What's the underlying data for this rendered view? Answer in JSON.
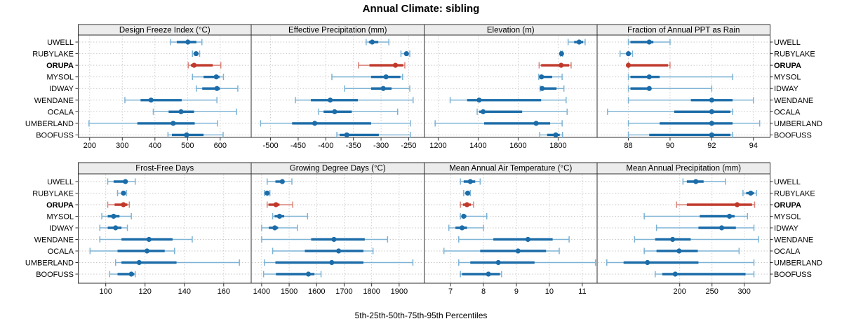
{
  "title": "Annual Climate: sibling",
  "footer": "5th-25th-50th-75th-95th Percentiles",
  "sites": [
    "UWELL",
    "RUBYLAKE",
    "ORUPA",
    "MYSOL",
    "IDWAY",
    "WENDANE",
    "OCALA",
    "UMBERLAND",
    "BOOFUSS"
  ],
  "highlighted_site": "ORUPA",
  "colors": {
    "blue_dark": "#1b6ca8",
    "blue_light": "#7db3d5",
    "red_dark": "#c0392b",
    "red_light": "#d98379",
    "grid": "#c8c8c8",
    "panel_border": "#2f2f2f",
    "strip_bg": "#ececec",
    "text": "#000000"
  },
  "chart_data": {
    "type": "dot-whisker-percentile-trellis",
    "percentiles_shown": [
      5,
      25,
      50,
      75,
      95
    ],
    "legend_note": "thin line = 5th-95th, thick line = 25th-75th, dot = median",
    "panels": [
      {
        "row": 0,
        "col": 0,
        "title": "Design Freeze Index (°C)",
        "ticks": [
          200,
          300,
          400,
          500,
          600
        ],
        "domain": [
          165,
          695
        ],
        "values": {
          "UWELL": [
            448,
            467,
            501,
            527,
            544
          ],
          "RUBYLAKE": [
            515,
            521,
            526,
            531,
            537
          ],
          "ORUPA": [
            502,
            510,
            520,
            577,
            602
          ],
          "MYSOL": [
            515,
            549,
            588,
            598,
            610
          ],
          "IDWAY": [
            527,
            545,
            590,
            599,
            654
          ],
          "WENDANE": [
            308,
            356,
            388,
            482,
            590
          ],
          "OCALA": [
            395,
            442,
            480,
            520,
            650
          ],
          "UMBERLAND": [
            198,
            346,
            456,
            522,
            592
          ],
          "BOOFUSS": [
            440,
            452,
            497,
            549,
            609
          ]
        }
      },
      {
        "row": 0,
        "col": 1,
        "title": "Effective Precipitation (mm)",
        "ticks": [
          -500,
          -450,
          -400,
          -350,
          -300,
          -250
        ],
        "domain": [
          -535,
          -222
        ],
        "values": {
          "UWELL": [
            -327,
            -322,
            -316,
            -305,
            -286
          ],
          "RUBYLAKE": [
            -264,
            -258,
            -254,
            -250,
            -248
          ],
          "ORUPA": [
            -341,
            -321,
            -274,
            -260,
            -257
          ],
          "MYSOL": [
            -389,
            -318,
            -291,
            -265,
            -261
          ],
          "IDWAY": [
            -366,
            -318,
            -296,
            -281,
            -248
          ],
          "WENDANE": [
            -455,
            -427,
            -392,
            -342,
            -242
          ],
          "OCALA": [
            -413,
            -404,
            -384,
            -353,
            -270
          ],
          "UMBERLAND": [
            -518,
            -461,
            -420,
            -318,
            -247
          ],
          "BOOFUSS": [
            -380,
            -375,
            -362,
            -304,
            -247
          ]
        }
      },
      {
        "row": 0,
        "col": 2,
        "title": "Elevation (m)",
        "ticks": [
          1200,
          1400,
          1600,
          1800
        ],
        "domain": [
          1130,
          1995
        ],
        "values": {
          "UWELL": [
            1850,
            1880,
            1905,
            1925,
            1935
          ],
          "RUBYLAKE": [
            1812,
            1815,
            1817,
            1819,
            1822
          ],
          "ORUPA": [
            1705,
            1715,
            1815,
            1855,
            1865
          ],
          "MYSOL": [
            1703,
            1710,
            1717,
            1770,
            1820
          ],
          "IDWAY": [
            1710,
            1715,
            1720,
            1792,
            1829
          ],
          "WENDANE": [
            1260,
            1345,
            1405,
            1715,
            1840
          ],
          "OCALA": [
            1395,
            1405,
            1425,
            1620,
            1845
          ],
          "UMBERLAND": [
            1185,
            1430,
            1690,
            1760,
            1820
          ],
          "BOOFUSS": [
            1708,
            1745,
            1788,
            1808,
            1822
          ]
        }
      },
      {
        "row": 0,
        "col": 3,
        "title": "Fraction of Annual PPT as Rain",
        "ticks": [
          88,
          90,
          92,
          94
        ],
        "domain": [
          86.5,
          94.8
        ],
        "values": {
          "UWELL": [
            88.0,
            88.1,
            89.0,
            89.2,
            90.0
          ],
          "RUBYLAKE": [
            87.6,
            87.9,
            88.0,
            88.1,
            88.2
          ],
          "ORUPA": [
            88.0,
            88.0,
            88.0,
            89.9,
            90.0
          ],
          "MYSOL": [
            88.0,
            88.1,
            89.0,
            89.5,
            93.0
          ],
          "IDWAY": [
            88.0,
            88.1,
            89.0,
            89.1,
            92.0
          ],
          "WENDANE": [
            88.0,
            91.0,
            92.0,
            93.0,
            94.0
          ],
          "OCALA": [
            87.0,
            90.2,
            92.0,
            92.9,
            93.0
          ],
          "UMBERLAND": [
            88.0,
            89.5,
            92.0,
            93.0,
            94.3
          ],
          "BOOFUSS": [
            88.0,
            89.0,
            92.0,
            92.9,
            93.0
          ]
        }
      },
      {
        "row": 1,
        "col": 0,
        "title": "Frost-Free Days",
        "ticks": [
          100,
          120,
          140,
          160
        ],
        "domain": [
          86,
          174
        ],
        "values": {
          "UWELL": [
            101,
            104,
            110,
            111,
            115
          ],
          "RUBYLAKE": [
            106,
            108,
            109,
            110,
            110.5
          ],
          "ORUPA": [
            101,
            104.5,
            109,
            111,
            112
          ],
          "MYSOL": [
            98,
            101,
            104,
            107,
            113
          ],
          "IDWAY": [
            97,
            101,
            105,
            108,
            111
          ],
          "WENDANE": [
            97,
            108,
            122,
            134,
            144
          ],
          "OCALA": [
            92,
            106,
            121,
            130,
            135
          ],
          "UMBERLAND": [
            105,
            108,
            117,
            136,
            168
          ],
          "BOOFUSS": [
            102,
            106,
            113,
            114.5,
            115
          ]
        }
      },
      {
        "row": 1,
        "col": 1,
        "title": "Growing Degree Days (°C)",
        "ticks": [
          1400,
          1500,
          1600,
          1700,
          1800,
          1900
        ],
        "domain": [
          1362,
          1991
        ],
        "values": {
          "UWELL": [
            1420,
            1450,
            1475,
            1480,
            1510
          ],
          "RUBYLAKE": [
            1410,
            1416,
            1420,
            1427,
            1430
          ],
          "ORUPA": [
            1420,
            1425,
            1452,
            1465,
            1513
          ],
          "MYSOL": [
            1440,
            1447,
            1465,
            1482,
            1567
          ],
          "IDWAY": [
            1400,
            1426,
            1448,
            1460,
            1530
          ],
          "WENDANE": [
            1400,
            1580,
            1663,
            1775,
            1858
          ],
          "OCALA": [
            1440,
            1557,
            1680,
            1770,
            1805
          ],
          "UMBERLAND": [
            1410,
            1450,
            1655,
            1770,
            1950
          ],
          "BOOFUSS": [
            1407,
            1452,
            1570,
            1592,
            1616
          ]
        }
      },
      {
        "row": 1,
        "col": 2,
        "title": "Mean Annual Air Temperature (°C)",
        "ticks": [
          7,
          8,
          9,
          10,
          11
        ],
        "domain": [
          6.2,
          11.45
        ],
        "values": {
          "UWELL": [
            7.3,
            7.4,
            7.6,
            7.75,
            7.9
          ],
          "RUBYLAKE": [
            7.4,
            7.48,
            7.52,
            7.55,
            7.6
          ],
          "ORUPA": [
            7.3,
            7.38,
            7.5,
            7.62,
            7.7
          ],
          "MYSOL": [
            7.3,
            7.33,
            7.4,
            7.48,
            8.1
          ],
          "IDWAY": [
            6.95,
            7.15,
            7.35,
            7.5,
            8.0
          ],
          "WENDANE": [
            7.25,
            8.3,
            9.35,
            10.1,
            10.6
          ],
          "OCALA": [
            6.8,
            7.9,
            9.05,
            9.9,
            10.3
          ],
          "UMBERLAND": [
            7.25,
            7.6,
            8.45,
            9.55,
            11.4
          ],
          "BOOFUSS": [
            7.3,
            7.35,
            8.15,
            8.5,
            8.55
          ]
        }
      },
      {
        "row": 1,
        "col": 3,
        "title": "Mean Annual Precipitation (mm)",
        "ticks": [
          200,
          250,
          300
        ],
        "domain": [
          72,
          340
        ],
        "values": {
          "UWELL": [
            205,
            211,
            225,
            237,
            271
          ],
          "RUBYLAKE": [
            298,
            303,
            310,
            315,
            319
          ],
          "ORUPA": [
            195,
            211,
            289,
            312,
            316
          ],
          "MYSOL": [
            145,
            231,
            277,
            285,
            305
          ],
          "IDWAY": [
            164,
            229,
            265,
            287,
            315
          ],
          "WENDANE": [
            130,
            162,
            189,
            217,
            322
          ],
          "OCALA": [
            145,
            164,
            199,
            228,
            292
          ],
          "UMBERLAND": [
            87,
            113,
            150,
            229,
            315
          ],
          "BOOFUSS": [
            162,
            173,
            193,
            302,
            315
          ]
        }
      }
    ]
  }
}
